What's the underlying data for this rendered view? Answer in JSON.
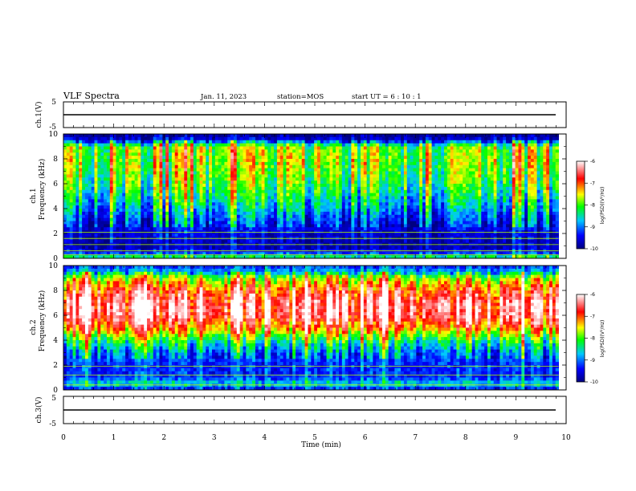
{
  "header": {
    "title": "VLF Spectra",
    "date": "Jan. 11, 2023",
    "station": "station=MOS",
    "start": "start  UT  =   6 : 10 : 1"
  },
  "chart_data": [
    {
      "type": "line",
      "panel": "ch1-waveform",
      "ylabel": "ch.1(V)",
      "ylim": [
        -5,
        5
      ],
      "yticks": [
        "5",
        "-5"
      ],
      "series": [
        {
          "values": [
            0,
            0
          ]
        }
      ],
      "x": [
        0,
        9.85
      ]
    },
    {
      "type": "heatmap",
      "panel": "ch1-spectrogram",
      "ylabel": "ch.1\nFrequency (kHz)",
      "ylim": [
        0,
        10
      ],
      "yticks": [
        "0",
        "2",
        "4",
        "6",
        "8",
        "10"
      ],
      "x_range_min": [
        0,
        9.85
      ],
      "colorbar": {
        "label": "log(PSD)(V²/Hz)",
        "ticks": [
          "-6",
          "-7",
          "-8",
          "-9",
          "-10"
        ],
        "range": [
          -10,
          -6
        ]
      },
      "profile": {
        "freq_khz": [
          0,
          0.5,
          1,
          2,
          3,
          4,
          5,
          6,
          7,
          8,
          9,
          9.5,
          10
        ],
        "level_log_psd": [
          -8,
          -9.5,
          -9.8,
          -9.6,
          -9.3,
          -8.8,
          -8.4,
          -8.1,
          -7.9,
          -7.8,
          -7.9,
          -9.5,
          -10
        ]
      },
      "horizontal_lines_khz": [
        0.3,
        0.6,
        1.1,
        1.6,
        2.1
      ]
    },
    {
      "type": "heatmap",
      "panel": "ch2-spectrogram",
      "ylabel": "ch.2\nFrequency (kHz)",
      "ylim": [
        0,
        10
      ],
      "yticks": [
        "0",
        "2",
        "4",
        "6",
        "8",
        "10"
      ],
      "x_range_min": [
        0,
        9.85
      ],
      "colorbar": {
        "label": "log(PSD)(V²/Hz)",
        "ticks": [
          "-6",
          "-7",
          "-8",
          "-9",
          "-10"
        ],
        "range": [
          -10,
          -6
        ]
      },
      "profile": {
        "freq_khz": [
          0,
          0.5,
          1,
          2,
          3,
          4,
          5,
          6,
          7,
          8,
          9,
          9.5,
          10
        ],
        "level_log_psd": [
          -9.5,
          -8.5,
          -9.3,
          -9.3,
          -9,
          -8.2,
          -7.1,
          -6.4,
          -6.4,
          -6.9,
          -7.7,
          -8.8,
          -9.3
        ]
      },
      "horizontal_lines_khz": [
        0.4,
        1.2,
        1.9
      ]
    },
    {
      "type": "line",
      "panel": "ch3-waveform",
      "ylabel": "ch.3(V)",
      "ylim": [
        -5,
        5
      ],
      "yticks": [
        "5",
        "-5"
      ],
      "series": [
        {
          "values": [
            0,
            0
          ]
        }
      ],
      "x": [
        0,
        9.85
      ]
    }
  ],
  "xaxis": {
    "label": "Time  (min)",
    "ticks": [
      "0",
      "1",
      "2",
      "3",
      "4",
      "5",
      "6",
      "7",
      "8",
      "9",
      "10"
    ],
    "range": [
      0,
      10
    ]
  },
  "colors": {
    "colormap": [
      "#000080",
      "#0000ff",
      "#00c8ff",
      "#00ff00",
      "#ffff00",
      "#ff0000",
      "#ffffff"
    ]
  }
}
